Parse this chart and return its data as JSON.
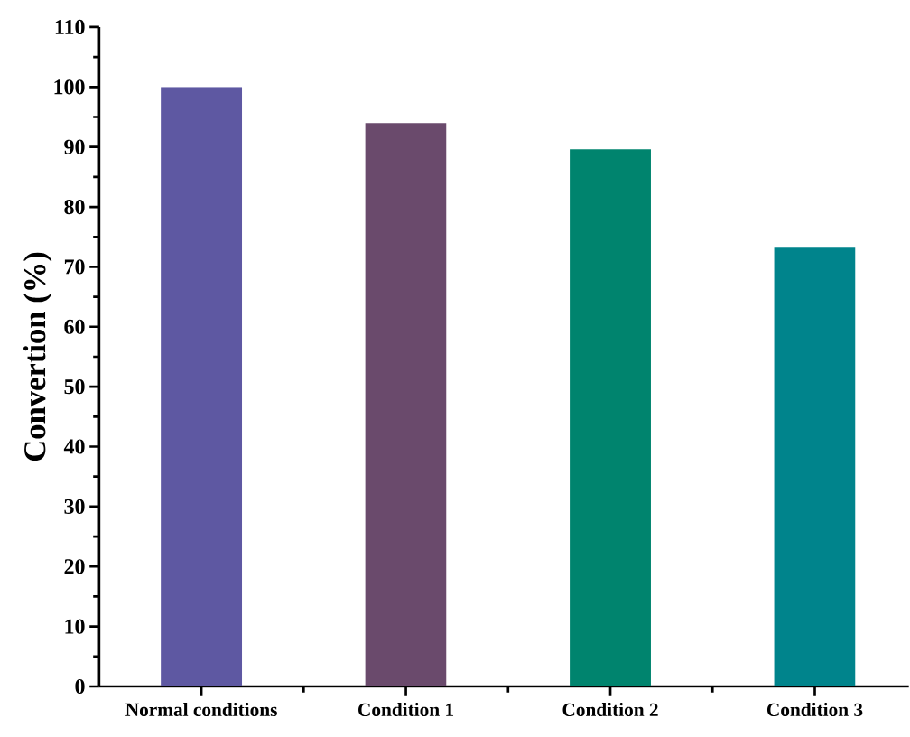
{
  "chart_data": {
    "type": "bar",
    "ylabel": "Convertion (%)",
    "categories": [
      "Normal conditions",
      "Condition 1",
      "Condition 2",
      "Condition 3"
    ],
    "values": [
      100,
      94,
      89.6,
      73.2
    ],
    "colors": [
      "#5e58a2",
      "#6a4a6c",
      "#00846e",
      "#00848c"
    ],
    "ylim": [
      0,
      110
    ],
    "yticks": [
      0,
      10,
      20,
      30,
      40,
      50,
      60,
      70,
      80,
      90,
      100,
      110
    ],
    "grid": false
  }
}
